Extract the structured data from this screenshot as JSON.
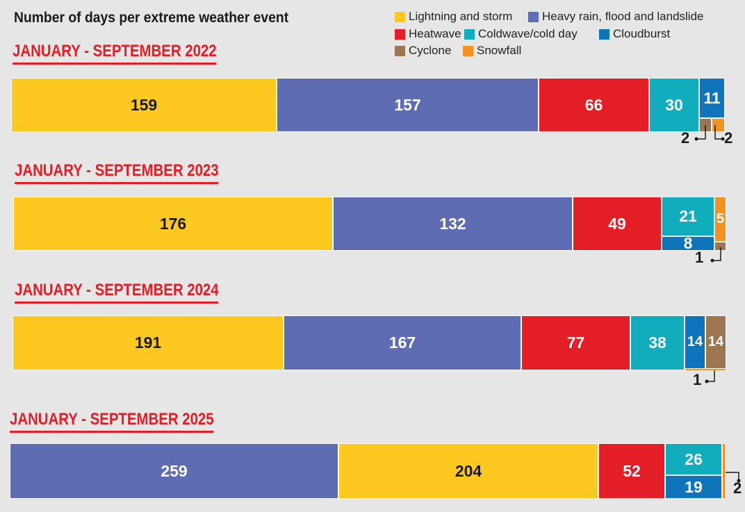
{
  "chart_data": {
    "type": "bar",
    "orientation": "horizontal-stacked",
    "title": "Number of days per extreme weather event",
    "legend": [
      {
        "name": "Lightning and storm",
        "color": "#fdc81f"
      },
      {
        "name": "Heavy rain, flood and landslide",
        "color": "#5e6db3"
      },
      {
        "name": "Heatwave",
        "color": "#e31e26"
      },
      {
        "name": "Coldwave/cold day",
        "color": "#11adbc"
      },
      {
        "name": "Cloudburst",
        "color": "#1074bb"
      },
      {
        "name": "Cyclone",
        "color": "#9b7650"
      },
      {
        "name": "Snowfall",
        "color": "#f39222"
      }
    ],
    "legend_placement": "top-right",
    "categories": [
      "JANUARY - SEPTEMBER 2022",
      "JANUARY - SEPTEMBER 2023",
      "JANUARY - SEPTEMBER 2024",
      "JANUARY - SEPTEMBER 2025"
    ],
    "series": [
      {
        "name": "Lightning and storm",
        "values": [
          159,
          176,
          191,
          204
        ]
      },
      {
        "name": "Heavy rain, flood and landslide",
        "values": [
          157,
          132,
          167,
          259
        ]
      },
      {
        "name": "Heatwave",
        "values": [
          66,
          49,
          77,
          52
        ]
      },
      {
        "name": "Coldwave/cold day",
        "values": [
          30,
          21,
          38,
          26
        ]
      },
      {
        "name": "Cloudburst",
        "values": [
          11,
          8,
          14,
          19
        ]
      },
      {
        "name": "Cyclone",
        "values": [
          2,
          1,
          14,
          0
        ]
      },
      {
        "name": "Snowfall",
        "values": [
          2,
          5,
          1,
          2
        ]
      }
    ]
  }
}
